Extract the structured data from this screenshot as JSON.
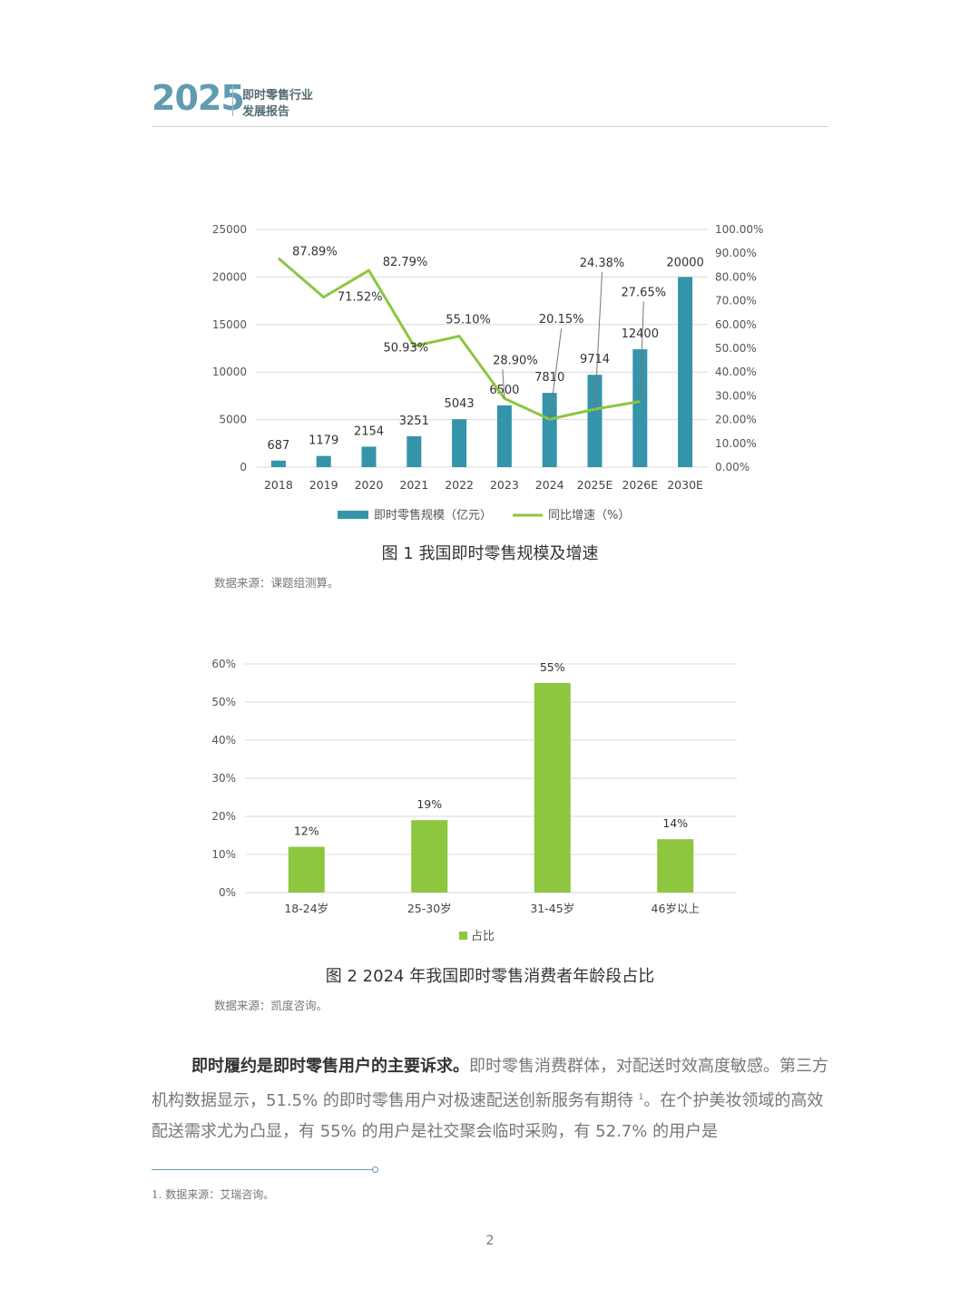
{
  "header": {
    "year": "2025",
    "title_line1": "即时零售行业",
    "title_line2": "发展报告"
  },
  "figure1": {
    "caption": "图 1  我国即时零售规模及增速",
    "source": "数据来源：课题组测算。"
  },
  "figure2": {
    "caption": "图 2  2024 年我国即时零售消费者年龄段占比",
    "source": "数据来源：凯度咨询。"
  },
  "paragraph": {
    "bold": "即时履约是即时零售用户的主要诉求。",
    "text1": "即时零售消费群体，对配送时效高度敏感。第三方机构数据显示，51.5% 的即时零售用户对极速配送创新服务有期待 ",
    "sup": "1",
    "text2": "。在个护美妆领域的高效配送需求尤为凸显，有 55% 的用户是社交聚会临时采购，有 52.7% 的用户是"
  },
  "footnote": "1. 数据来源：艾瑞咨询。",
  "page_number": "2",
  "colors": {
    "bar_teal": "#3494aa",
    "line_green": "#8cc63f",
    "bar_green": "#8dc63f",
    "accent": "#5f9caf"
  },
  "chart_data": [
    {
      "type": "bar+line",
      "categories": [
        "2018",
        "2019",
        "2020",
        "2021",
        "2022",
        "2023",
        "2024",
        "2025E",
        "2026E",
        "2030E"
      ],
      "series": [
        {
          "name": "即时零售规模（亿元）",
          "type": "bar",
          "axis": "left",
          "values": [
            687,
            1179,
            2154,
            3251,
            5043,
            6500,
            7810,
            9714,
            12400,
            20000
          ],
          "labels": [
            "687",
            "1179",
            "2154",
            "3251",
            "5043",
            "6500",
            "7810",
            "9714",
            "12400",
            "20000"
          ]
        },
        {
          "name": "同比增速（%）",
          "type": "line",
          "axis": "right",
          "values": [
            87.89,
            71.52,
            82.79,
            50.93,
            55.1,
            28.9,
            20.15,
            24.38,
            27.65,
            null
          ],
          "labels": [
            "87.89%",
            "71.52%",
            "82.79%",
            "50.93%",
            "55.10%",
            "28.90%",
            "20.15%",
            "24.38%",
            "27.65%",
            ""
          ]
        }
      ],
      "y_left": {
        "min": 0,
        "max": 25000,
        "ticks": [
          "0",
          "5000",
          "10000",
          "15000",
          "20000",
          "25000"
        ]
      },
      "y_right": {
        "min": 0,
        "max": 100,
        "ticks": [
          "0.00%",
          "10.00%",
          "20.00%",
          "30.00%",
          "40.00%",
          "50.00%",
          "60.00%",
          "70.00%",
          "80.00%",
          "90.00%",
          "100.00%"
        ]
      },
      "grid": true,
      "legend": "bottom"
    },
    {
      "type": "bar",
      "categories": [
        "18-24岁",
        "25-30岁",
        "31-45岁",
        "46岁以上"
      ],
      "series": [
        {
          "name": "占比",
          "values": [
            12,
            19,
            55,
            14
          ],
          "labels": [
            "12%",
            "19%",
            "55%",
            "14%"
          ]
        }
      ],
      "y": {
        "min": 0,
        "max": 60,
        "ticks": [
          "0%",
          "10%",
          "20%",
          "30%",
          "40%",
          "50%",
          "60%"
        ]
      },
      "grid": true,
      "legend": "bottom"
    }
  ]
}
